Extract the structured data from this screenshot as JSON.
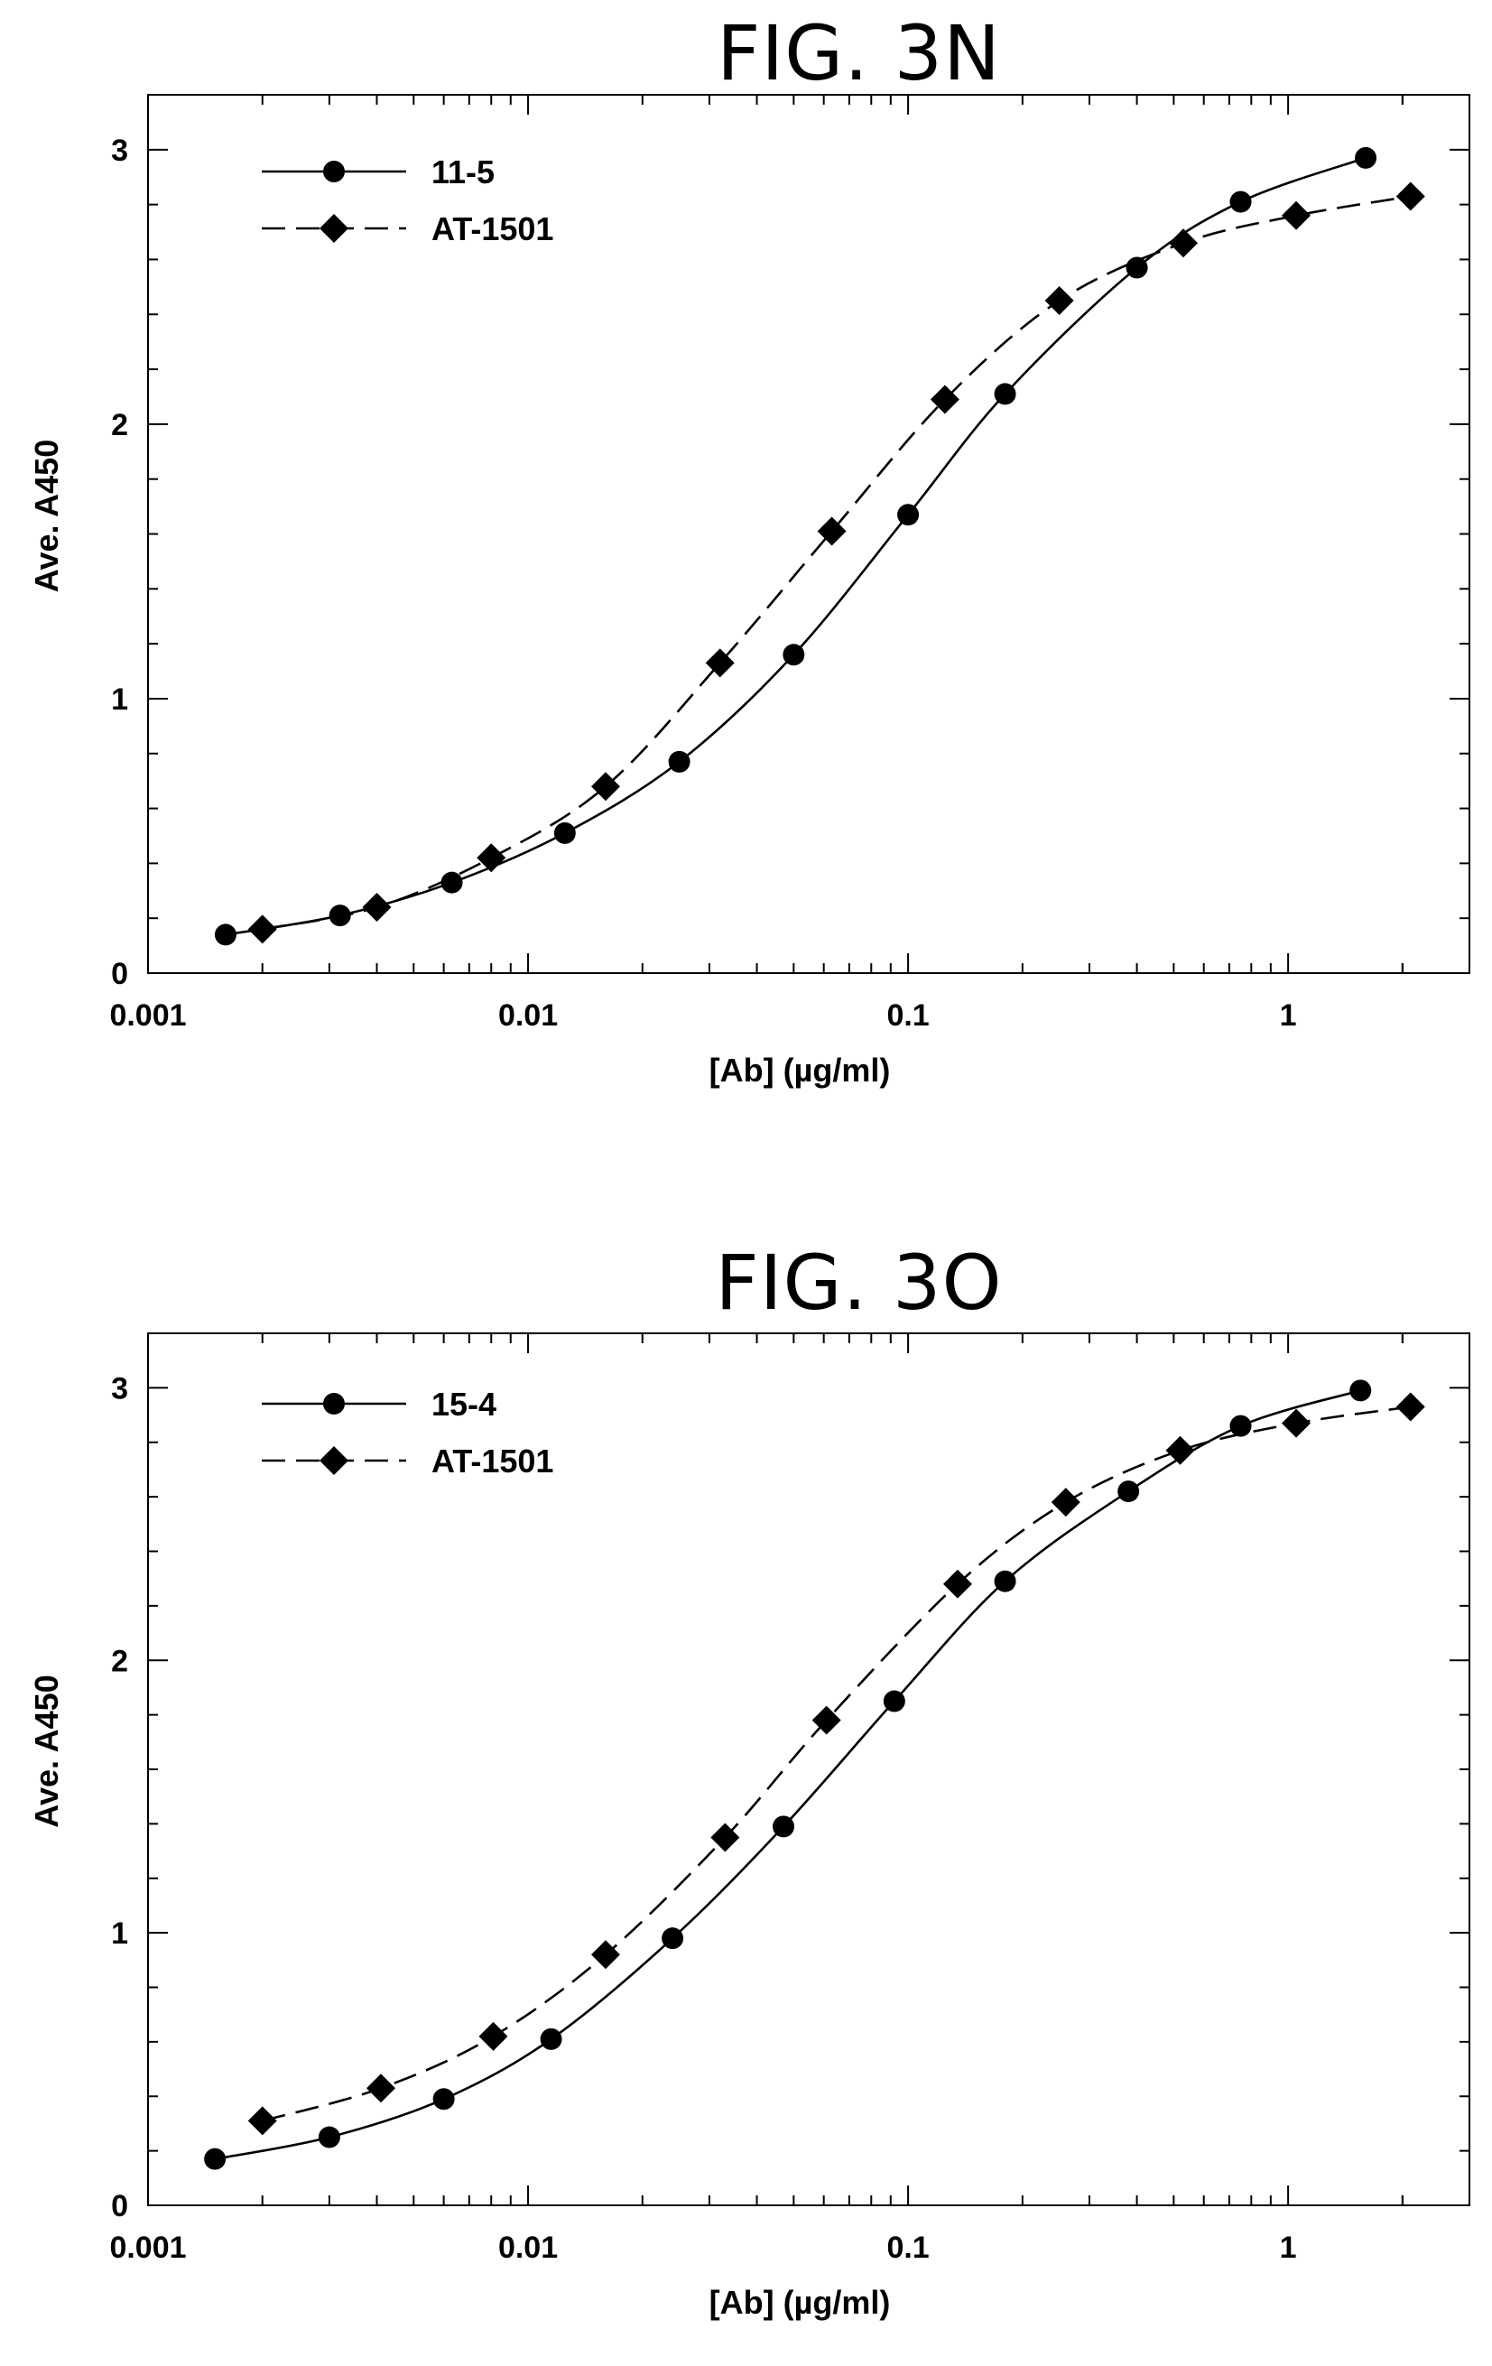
{
  "chart_data": [
    {
      "type": "line",
      "title": "FIG. 3N",
      "xlabel": "[Ab]  (µg/ml)",
      "ylabel": "Ave. A450",
      "xscale": "log",
      "xlim": [
        0.001,
        3
      ],
      "ylim": [
        0,
        3.2
      ],
      "x_ticks": [
        "0.001",
        "0.01",
        "0.1",
        "1"
      ],
      "y_ticks": [
        "0",
        "1",
        "2",
        "3"
      ],
      "legend_position": "top-left",
      "series": [
        {
          "name": "11-5",
          "marker": "circle",
          "line_style": "solid",
          "x": [
            0.0016,
            0.0032,
            0.0063,
            0.0125,
            0.025,
            0.05,
            0.1,
            0.18,
            0.4,
            0.75,
            1.6
          ],
          "y": [
            0.14,
            0.21,
            0.33,
            0.51,
            0.77,
            1.16,
            1.67,
            2.11,
            2.57,
            2.81,
            2.97
          ]
        },
        {
          "name": "AT-1501",
          "marker": "diamond",
          "line_style": "dashed",
          "x": [
            0.002,
            0.004,
            0.008,
            0.016,
            0.032,
            0.063,
            0.125,
            0.25,
            0.53,
            1.05,
            2.1
          ],
          "y": [
            0.16,
            0.24,
            0.42,
            0.68,
            1.13,
            1.61,
            2.09,
            2.45,
            2.66,
            2.76,
            2.83
          ]
        }
      ]
    },
    {
      "type": "line",
      "title": "FIG. 3O",
      "xlabel": "[Ab]  (µg/ml)",
      "ylabel": "Ave. A450",
      "xscale": "log",
      "xlim": [
        0.001,
        3
      ],
      "ylim": [
        0,
        3.2
      ],
      "x_ticks": [
        "0.001",
        "0.01",
        "0.1",
        "1"
      ],
      "y_ticks": [
        "0",
        "1",
        "2",
        "3"
      ],
      "legend_position": "top-left",
      "series": [
        {
          "name": "15-4",
          "marker": "circle",
          "line_style": "solid",
          "x": [
            0.0015,
            0.003,
            0.006,
            0.0115,
            0.024,
            0.047,
            0.092,
            0.18,
            0.38,
            0.75,
            1.55
          ],
          "y": [
            0.17,
            0.25,
            0.39,
            0.61,
            0.98,
            1.39,
            1.85,
            2.29,
            2.62,
            2.86,
            2.99
          ]
        },
        {
          "name": "AT-1501",
          "marker": "diamond",
          "line_style": "dashed",
          "x": [
            0.002,
            0.0041,
            0.0081,
            0.016,
            0.033,
            0.061,
            0.135,
            0.26,
            0.52,
            1.05,
            2.1
          ],
          "y": [
            0.31,
            0.43,
            0.62,
            0.92,
            1.35,
            1.78,
            2.28,
            2.58,
            2.77,
            2.87,
            2.93
          ]
        }
      ]
    }
  ]
}
